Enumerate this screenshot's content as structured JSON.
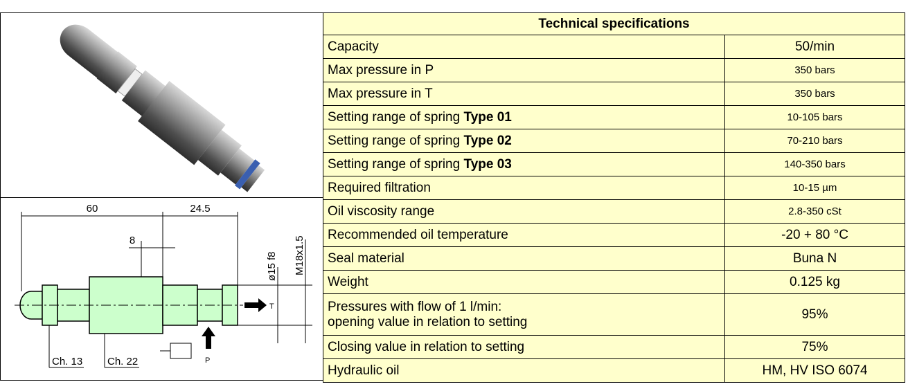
{
  "header": {
    "title": "Technical specifications"
  },
  "table": {
    "rows": [
      {
        "label": [
          "Capacity"
        ],
        "value": "50/min"
      },
      {
        "label": [
          "Max pressure in P"
        ],
        "value": "350 bars"
      },
      {
        "label": [
          "Max pressure in T"
        ],
        "value": "350 bars"
      },
      {
        "label": [
          "Setting range of spring"
        ],
        "label_bold": "Type 01",
        "value": "10-105 bars"
      },
      {
        "label": [
          "Setting range of spring"
        ],
        "label_bold": "Type 02",
        "value": "70-210 bars"
      },
      {
        "label": [
          "Setting range of spring"
        ],
        "label_bold": "Type 03",
        "value": "140-350 bars"
      },
      {
        "label": [
          "Required filtration"
        ],
        "value": "10-15 µm"
      },
      {
        "label": [
          "Oil viscosity range"
        ],
        "value": "2.8-350 cSt"
      },
      {
        "label": [
          "Recommended oil temperature"
        ],
        "value": "-20 + 80 °C"
      },
      {
        "label": [
          "Seal material"
        ],
        "value": "Buna N"
      },
      {
        "label": [
          "Weight"
        ],
        "value": "0.125 kg"
      },
      {
        "label": [
          "Pressures with flow of 1 l/min:",
          "opening value in relation to setting"
        ],
        "value": "95%"
      },
      {
        "label": [
          "Closing value in relation to setting"
        ],
        "value": "75%"
      },
      {
        "label": [
          "Hydraulic oil"
        ],
        "value": "HM, HV ISO 6074"
      }
    ]
  },
  "drawing": {
    "dim_total": "60",
    "dim_end": "24.5",
    "dim_small": "8",
    "dim_diameter": "ø15 f8",
    "dim_thread": "M18x1.5",
    "port_t": "T",
    "port_p": "P",
    "hex_small": "Ch. 13",
    "hex_large": "Ch. 22"
  }
}
